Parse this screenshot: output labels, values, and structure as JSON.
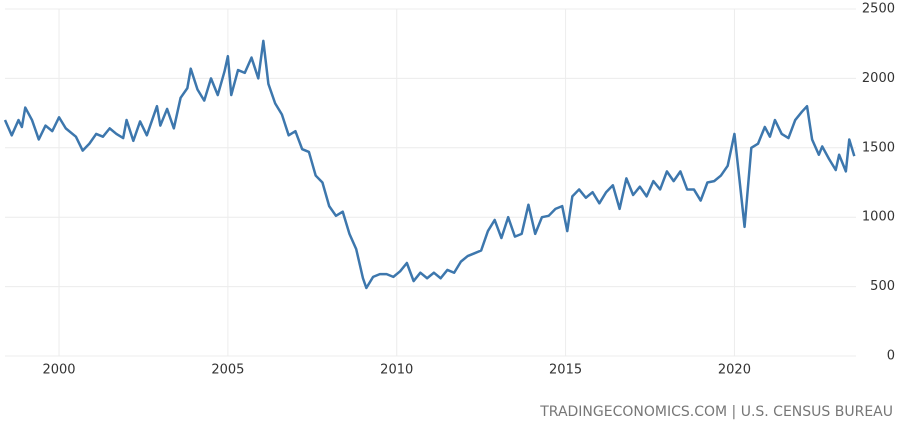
{
  "chart_data": {
    "type": "line",
    "source": "TRADINGECONOMICS.COM | U.S. CENSUS BUREAU",
    "color": "#3d77ad",
    "grid": true,
    "xlim": [
      1998.4,
      2023.6
    ],
    "xticks": [
      2000,
      2005,
      2010,
      2015,
      2020
    ],
    "ylim": [
      0,
      2500
    ],
    "yticks": [
      0,
      500,
      1000,
      1500,
      2000,
      2500
    ],
    "x": [
      1998.4,
      1998.6,
      1998.8,
      1998.9,
      1999.0,
      1999.2,
      1999.4,
      1999.6,
      1999.8,
      2000.0,
      2000.2,
      2000.5,
      2000.7,
      2000.9,
      2001.1,
      2001.3,
      2001.5,
      2001.7,
      2001.9,
      2002.0,
      2002.2,
      2002.4,
      2002.6,
      2002.9,
      2003.0,
      2003.2,
      2003.4,
      2003.6,
      2003.8,
      2003.9,
      2004.1,
      2004.3,
      2004.5,
      2004.7,
      2004.9,
      2005.0,
      2005.1,
      2005.3,
      2005.5,
      2005.7,
      2005.9,
      2006.05,
      2006.2,
      2006.4,
      2006.6,
      2006.8,
      2007.0,
      2007.2,
      2007.4,
      2007.6,
      2007.8,
      2008.0,
      2008.2,
      2008.4,
      2008.6,
      2008.8,
      2009.0,
      2009.1,
      2009.3,
      2009.5,
      2009.7,
      2009.9,
      2010.1,
      2010.3,
      2010.5,
      2010.7,
      2010.9,
      2011.1,
      2011.3,
      2011.5,
      2011.7,
      2011.9,
      2012.1,
      2012.3,
      2012.5,
      2012.7,
      2012.9,
      2013.1,
      2013.3,
      2013.5,
      2013.7,
      2013.9,
      2014.1,
      2014.3,
      2014.5,
      2014.7,
      2014.9,
      2015.05,
      2015.2,
      2015.4,
      2015.6,
      2015.8,
      2016.0,
      2016.2,
      2016.4,
      2016.6,
      2016.8,
      2017.0,
      2017.2,
      2017.4,
      2017.6,
      2017.8,
      2018.0,
      2018.2,
      2018.4,
      2018.6,
      2018.8,
      2019.0,
      2019.2,
      2019.4,
      2019.6,
      2019.8,
      2020.0,
      2020.15,
      2020.3,
      2020.5,
      2020.7,
      2020.9,
      2021.05,
      2021.2,
      2021.4,
      2021.6,
      2021.8,
      2022.0,
      2022.15,
      2022.3,
      2022.5,
      2022.6,
      2022.8,
      2023.0,
      2023.1,
      2023.3,
      2023.4,
      2023.55
    ],
    "values": [
      1700,
      1590,
      1700,
      1650,
      1790,
      1700,
      1560,
      1660,
      1620,
      1720,
      1640,
      1580,
      1480,
      1530,
      1600,
      1580,
      1640,
      1600,
      1570,
      1700,
      1550,
      1690,
      1590,
      1800,
      1660,
      1780,
      1640,
      1860,
      1930,
      2070,
      1920,
      1840,
      2000,
      1880,
      2050,
      2160,
      1880,
      2060,
      2040,
      2150,
      2000,
      2270,
      1960,
      1820,
      1740,
      1590,
      1620,
      1490,
      1470,
      1300,
      1250,
      1080,
      1010,
      1040,
      880,
      770,
      560,
      490,
      570,
      590,
      590,
      570,
      610,
      670,
      540,
      600,
      560,
      600,
      560,
      620,
      600,
      680,
      720,
      740,
      760,
      900,
      980,
      850,
      1000,
      860,
      880,
      1090,
      880,
      1000,
      1010,
      1060,
      1080,
      900,
      1150,
      1200,
      1140,
      1180,
      1100,
      1180,
      1230,
      1060,
      1280,
      1160,
      1220,
      1150,
      1260,
      1200,
      1330,
      1260,
      1330,
      1200,
      1200,
      1120,
      1250,
      1260,
      1300,
      1370,
      1600,
      1270,
      930,
      1500,
      1530,
      1650,
      1580,
      1700,
      1600,
      1570,
      1700,
      1760,
      1800,
      1560,
      1450,
      1510,
      1420,
      1340,
      1450,
      1330,
      1560,
      1440
    ]
  }
}
